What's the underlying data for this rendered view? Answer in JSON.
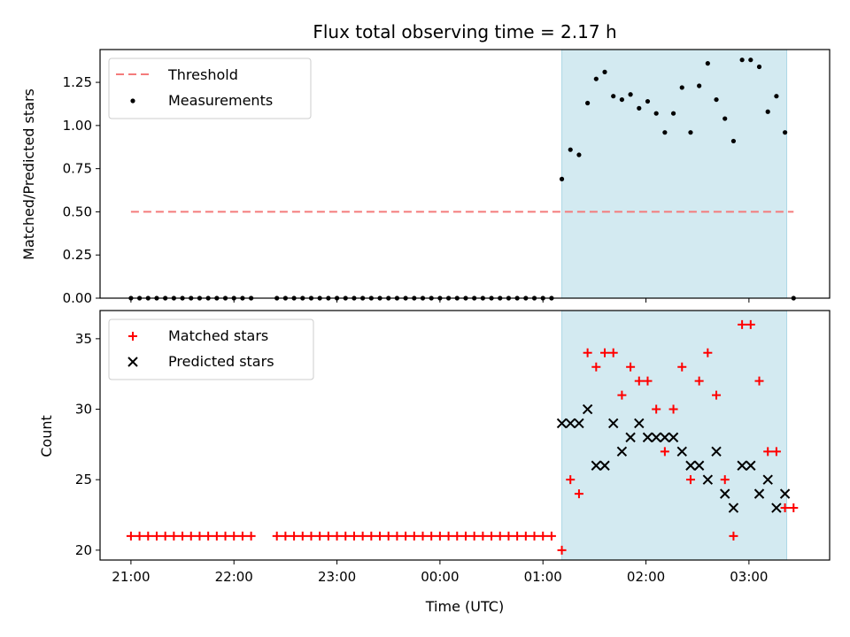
{
  "chart_data": [
    {
      "type": "scatter",
      "title": "Flux total observing time = 2.17 h",
      "xlabel": "",
      "ylabel": "Matched/Predicted stars",
      "ylim": [
        0,
        1.44
      ],
      "yticks": [
        "0.00",
        "0.25",
        "0.50",
        "0.75",
        "1.00",
        "1.25"
      ],
      "ytick_values": [
        0,
        0.25,
        0.5,
        0.75,
        1.0,
        1.25
      ],
      "highlight_span": {
        "start": "01:11",
        "end": "03:22",
        "color": "#d3eaf1"
      },
      "legend": {
        "position": "upper left",
        "entries": [
          "Threshold",
          "Measurements"
        ]
      },
      "series": [
        {
          "name": "Threshold",
          "style": "dashed-line",
          "color": "#f47b7b",
          "x": [
            "21:00",
            "03:26"
          ],
          "y": [
            0.5,
            0.5
          ]
        },
        {
          "name": "Measurements",
          "style": "dot",
          "color": "#000000",
          "x": [
            "21:00",
            "21:05",
            "21:10",
            "21:15",
            "21:20",
            "21:25",
            "21:30",
            "21:35",
            "21:40",
            "21:45",
            "21:50",
            "21:55",
            "22:00",
            "22:05",
            "22:10",
            "22:25",
            "22:30",
            "22:35",
            "22:40",
            "22:45",
            "22:50",
            "22:55",
            "23:00",
            "23:05",
            "23:10",
            "23:15",
            "23:20",
            "23:25",
            "23:30",
            "23:35",
            "23:40",
            "23:45",
            "23:50",
            "23:55",
            "00:00",
            "00:05",
            "00:10",
            "00:15",
            "00:20",
            "00:25",
            "00:30",
            "00:35",
            "00:40",
            "00:45",
            "00:50",
            "00:55",
            "01:00",
            "01:05",
            "01:11",
            "01:16",
            "01:21",
            "01:26",
            "01:31",
            "01:36",
            "01:41",
            "01:46",
            "01:51",
            "01:56",
            "02:01",
            "02:06",
            "02:11",
            "02:16",
            "02:21",
            "02:26",
            "02:31",
            "02:36",
            "02:41",
            "02:46",
            "02:51",
            "02:56",
            "03:01",
            "03:06",
            "03:11",
            "03:16",
            "03:21",
            "03:26"
          ],
          "y": [
            0,
            0,
            0,
            0,
            0,
            0,
            0,
            0,
            0,
            0,
            0,
            0,
            0,
            0,
            0,
            0,
            0,
            0,
            0,
            0,
            0,
            0,
            0,
            0,
            0,
            0,
            0,
            0,
            0,
            0,
            0,
            0,
            0,
            0,
            0,
            0,
            0,
            0,
            0,
            0,
            0,
            0,
            0,
            0,
            0,
            0,
            0,
            0,
            0.69,
            0.86,
            0.83,
            1.13,
            1.27,
            1.31,
            1.17,
            1.15,
            1.18,
            1.1,
            1.14,
            1.07,
            0.96,
            1.07,
            1.22,
            0.96,
            1.23,
            1.36,
            1.15,
            1.04,
            0.91,
            1.38,
            1.38,
            1.34,
            1.08,
            1.17,
            0.96,
            0
          ]
        }
      ]
    },
    {
      "type": "scatter",
      "title": "",
      "xlabel": "Time (UTC)",
      "ylabel": "Count",
      "ylim": [
        19.3,
        37
      ],
      "yticks": [
        "20",
        "25",
        "30",
        "35"
      ],
      "ytick_values": [
        20,
        25,
        30,
        35
      ],
      "xticks": [
        "21:00",
        "22:00",
        "23:00",
        "00:00",
        "01:00",
        "02:00",
        "03:00"
      ],
      "highlight_span": {
        "start": "01:11",
        "end": "03:22",
        "color": "#d3eaf1"
      },
      "legend": {
        "position": "upper left",
        "entries": [
          "Matched stars",
          "Predicted stars"
        ]
      },
      "series": [
        {
          "name": "Matched stars",
          "marker": "plus",
          "color": "#ff0000",
          "x": [
            "21:00",
            "21:05",
            "21:10",
            "21:15",
            "21:20",
            "21:25",
            "21:30",
            "21:35",
            "21:40",
            "21:45",
            "21:50",
            "21:55",
            "22:00",
            "22:05",
            "22:10",
            "22:25",
            "22:30",
            "22:35",
            "22:40",
            "22:45",
            "22:50",
            "22:55",
            "23:00",
            "23:05",
            "23:10",
            "23:15",
            "23:20",
            "23:25",
            "23:30",
            "23:35",
            "23:40",
            "23:45",
            "23:50",
            "23:55",
            "00:00",
            "00:05",
            "00:10",
            "00:15",
            "00:20",
            "00:25",
            "00:30",
            "00:35",
            "00:40",
            "00:45",
            "00:50",
            "00:55",
            "01:00",
            "01:05",
            "01:11",
            "01:16",
            "01:21",
            "01:26",
            "01:31",
            "01:36",
            "01:41",
            "01:46",
            "01:51",
            "01:56",
            "02:01",
            "02:06",
            "02:11",
            "02:16",
            "02:21",
            "02:26",
            "02:31",
            "02:36",
            "02:41",
            "02:46",
            "02:51",
            "02:56",
            "03:01",
            "03:06",
            "03:11",
            "03:16",
            "03:21",
            "03:26"
          ],
          "y": [
            21,
            21,
            21,
            21,
            21,
            21,
            21,
            21,
            21,
            21,
            21,
            21,
            21,
            21,
            21,
            21,
            21,
            21,
            21,
            21,
            21,
            21,
            21,
            21,
            21,
            21,
            21,
            21,
            21,
            21,
            21,
            21,
            21,
            21,
            21,
            21,
            21,
            21,
            21,
            21,
            21,
            21,
            21,
            21,
            21,
            21,
            21,
            21,
            20,
            25,
            24,
            34,
            33,
            34,
            34,
            31,
            33,
            32,
            32,
            30,
            27,
            30,
            33,
            25,
            32,
            34,
            31,
            25,
            21,
            36,
            36,
            32,
            27,
            27,
            23,
            23
          ]
        },
        {
          "name": "Predicted stars",
          "marker": "x",
          "color": "#000000",
          "x": [
            "01:11",
            "01:16",
            "01:21",
            "01:26",
            "01:31",
            "01:36",
            "01:41",
            "01:46",
            "01:51",
            "01:56",
            "02:01",
            "02:06",
            "02:11",
            "02:16",
            "02:21",
            "02:26",
            "02:31",
            "02:36",
            "02:41",
            "02:46",
            "02:51",
            "02:56",
            "03:01",
            "03:06",
            "03:11",
            "03:16",
            "03:21"
          ],
          "y": [
            29,
            29,
            29,
            30,
            26,
            26,
            29,
            27,
            28,
            29,
            28,
            28,
            28,
            28,
            27,
            26,
            26,
            25,
            27,
            24,
            23,
            26,
            26,
            24,
            25,
            23,
            24
          ]
        }
      ]
    }
  ]
}
